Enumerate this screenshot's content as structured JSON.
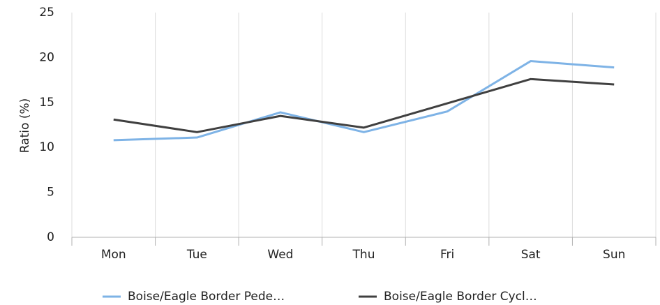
{
  "chart_data": {
    "type": "line",
    "y_label": "Ratio (%)",
    "categories": [
      "Mon",
      "Tue",
      "Wed",
      "Thu",
      "Fri",
      "Sat",
      "Sun"
    ],
    "series": [
      {
        "name": "Boise/Eagle Border Pede…",
        "color": "#7eb3e6",
        "values": [
          10.8,
          11.1,
          13.9,
          11.7,
          14.0,
          19.6,
          18.9
        ]
      },
      {
        "name": "Boise/Eagle Border Cycl…",
        "color": "#404040",
        "values": [
          13.1,
          11.7,
          13.5,
          12.2,
          14.9,
          17.6,
          17.0
        ]
      }
    ],
    "ylim": [
      0,
      25
    ],
    "yticks": [
      0,
      5,
      10,
      15,
      20,
      25
    ],
    "grid": "x",
    "legend": "bottom"
  }
}
